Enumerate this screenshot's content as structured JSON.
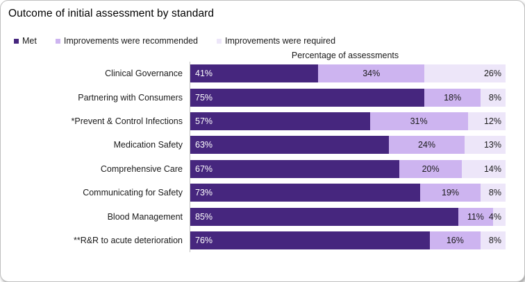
{
  "title": "Outcome of initial assessment by standard",
  "axis_title": "Percentage of assessments",
  "legend": [
    {
      "label": "Met",
      "color": "#46267E"
    },
    {
      "label": "Improvements were recommended",
      "color": "#CDB4F0"
    },
    {
      "label": "Improvements were required",
      "color": "#EDE6F9"
    }
  ],
  "colors": {
    "met": "#46267E",
    "recommended": "#CDB4F0",
    "required": "#EDE6F9",
    "frame_border": "#BFBFBF",
    "axis_line": "#BFBFBF",
    "text": "#1A1A1A",
    "met_label_text": "#FFFFFF"
  },
  "chart_data": {
    "type": "bar",
    "orientation": "horizontal",
    "stacked": true,
    "percent_of_total": true,
    "title": "Outcome of initial assessment by standard",
    "xlabel": "Percentage of assessments",
    "value_suffix": "%",
    "legend_position": "top",
    "grid": false,
    "categories": [
      "Clinical Governance",
      "Partnering with Consumers",
      "*Prevent & Control Infections",
      "Medication Safety",
      "Comprehensive Care",
      "Communicating for Safety",
      "Blood Management",
      "**R&R to acute deterioration"
    ],
    "series": [
      {
        "name": "Met",
        "color": "#46267E",
        "label_color": "#FFFFFF",
        "label_align": "start",
        "values": [
          41,
          75,
          57,
          63,
          67,
          73,
          85,
          76
        ]
      },
      {
        "name": "Improvements were recommended",
        "color": "#CDB4F0",
        "label_color": "#1A1A1A",
        "label_align": "center",
        "values": [
          34,
          18,
          31,
          24,
          20,
          19,
          11,
          16
        ]
      },
      {
        "name": "Improvements were required",
        "color": "#EDE6F9",
        "label_color": "#1A1A1A",
        "label_align": "end",
        "values": [
          26,
          8,
          12,
          13,
          14,
          8,
          4,
          8
        ]
      }
    ]
  }
}
